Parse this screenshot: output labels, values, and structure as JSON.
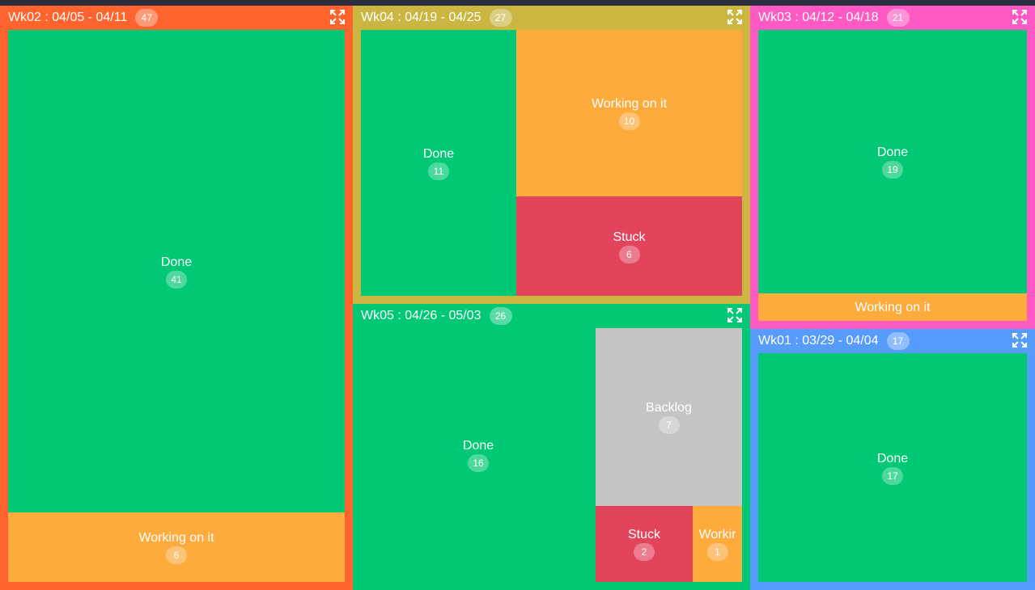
{
  "chart_data": {
    "type": "treemap",
    "groups": [
      {
        "key": "wk02",
        "label": "Wk02 : 04/05 - 04/11",
        "total": "47",
        "color": "#ff642e",
        "cells": [
          {
            "label": "Done",
            "value": "41",
            "color": "#00c875"
          },
          {
            "label": "Working on it",
            "value": "6",
            "color": "#fdab3d"
          }
        ]
      },
      {
        "key": "wk04",
        "label": "Wk04 : 04/19 - 04/25",
        "total": "27",
        "color": "#cab641",
        "cells": [
          {
            "label": "Done",
            "value": "11",
            "color": "#00c875"
          },
          {
            "label": "Working on it",
            "value": "10",
            "color": "#fdab3d"
          },
          {
            "label": "Stuck",
            "value": "6",
            "color": "#e2445c"
          }
        ]
      },
      {
        "key": "wk05",
        "label": "Wk05 : 04/26 - 05/03",
        "total": "26",
        "color": "#00c875",
        "cells": [
          {
            "label": "Done",
            "value": "16",
            "color": "#00c875"
          },
          {
            "label": "Backlog",
            "value": "7",
            "color": "#c4c4c4"
          },
          {
            "label": "Stuck",
            "value": "2",
            "color": "#e2445c"
          },
          {
            "label": "Workir",
            "value": "1",
            "color": "#fdab3d"
          }
        ]
      },
      {
        "key": "wk03",
        "label": "Wk03 : 04/12 - 04/18",
        "total": "21",
        "color": "#ff5ac4",
        "cells": [
          {
            "label": "Done",
            "value": "19",
            "color": "#00c875"
          },
          {
            "label": "Working on it",
            "value": "",
            "color": "#fdab3d"
          }
        ]
      },
      {
        "key": "wk01",
        "label": "Wk01 : 03/29 - 04/04",
        "total": "17",
        "color": "#579bfc",
        "cells": [
          {
            "label": "Done",
            "value": "17",
            "color": "#00c875"
          }
        ]
      }
    ]
  },
  "icons": {
    "expand": "expand-icon"
  }
}
